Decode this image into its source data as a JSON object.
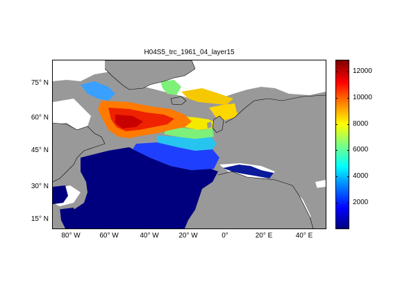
{
  "title": "H04S5_trc_1961_04_layer15",
  "map": {
    "lat_ticks": [
      "75° N",
      "60° N",
      "45° N",
      "30° N",
      "15° N"
    ],
    "lon_ticks": [
      "80° W",
      "60° W",
      "40° W",
      "20° W",
      "0°",
      "20° E",
      "40° E"
    ],
    "land_color": "#999999",
    "no_data_color": "#ffffff",
    "colormap": "jet"
  },
  "colorbar": {
    "min": 0,
    "max": 12500,
    "ticks": [
      "12000",
      "10000",
      "8000",
      "6000",
      "4000",
      "2000"
    ]
  }
}
